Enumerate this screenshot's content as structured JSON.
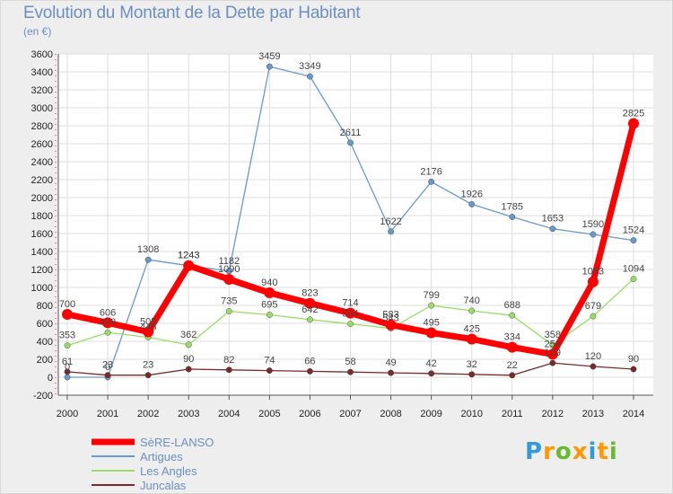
{
  "chart_data": {
    "type": "line",
    "title": "Evolution du Montant de la Dette par Habitant",
    "subtitle": "(en €)",
    "x": [
      "2000",
      "2001",
      "2002",
      "2003",
      "2004",
      "2005",
      "2006",
      "2007",
      "2008",
      "2009",
      "2010",
      "2011",
      "2012",
      "2013",
      "2014"
    ],
    "yticks": [
      -200,
      0,
      200,
      400,
      600,
      800,
      1000,
      1200,
      1400,
      1600,
      1800,
      2000,
      2200,
      2400,
      2600,
      2800,
      3000,
      3200,
      3400,
      3600
    ],
    "ylim": [
      -200,
      3600
    ],
    "series": [
      {
        "name": "SèRE-LANSO",
        "color": "#ff0000",
        "width": 7,
        "values": [
          700,
          606,
          505,
          1243,
          1090,
          940,
          823,
          714,
          583,
          495,
          425,
          334,
          256,
          1063,
          2825
        ],
        "labels": [
          "700",
          "606",
          "505",
          "1243",
          "1090",
          "940",
          "823",
          "714",
          "583",
          "495",
          "425",
          "334",
          "256",
          "1063",
          "2825"
        ]
      },
      {
        "name": "Artigues",
        "color": "#6699cc",
        "width": 1.3,
        "values": [
          0,
          0,
          1308,
          1243,
          1182,
          3459,
          3349,
          2611,
          1622,
          2176,
          1926,
          1785,
          1653,
          1590,
          1524
        ],
        "labels": [
          "0",
          "0",
          "1308",
          "1243",
          "1182",
          "3459",
          "3349",
          "2611",
          "1622",
          "2176",
          "1926",
          "1785",
          "1653",
          "1590",
          "1524"
        ]
      },
      {
        "name": "Les Angles",
        "color": "#99dd66",
        "width": 1.3,
        "values": [
          353,
          498,
          445,
          362,
          735,
          695,
          642,
          594,
          543,
          799,
          740,
          688,
          358,
          679,
          1094
        ],
        "labels": [
          "353",
          "498",
          "445",
          "362",
          "735",
          "695",
          "642",
          "594",
          "543",
          "799",
          "740",
          "688",
          "358",
          "679",
          "1094"
        ]
      },
      {
        "name": "Juncalas",
        "color": "#7a2a2a",
        "width": 1.3,
        "values": [
          61,
          23,
          23,
          90,
          82,
          74,
          66,
          58,
          49,
          42,
          32,
          22,
          159,
          120,
          90
        ],
        "labels": [
          "61",
          "23",
          "23",
          "90",
          "82",
          "74",
          "66",
          "58",
          "49",
          "42",
          "32",
          "22",
          "159",
          "120",
          "90"
        ]
      }
    ]
  },
  "brand": {
    "letters": [
      "P",
      "r",
      "o",
      "x",
      "i",
      "t",
      "i"
    ],
    "colors": [
      "#3399dd",
      "#ff9900",
      "#66bb33",
      "#ff9900",
      "#3399dd",
      "#ff9900",
      "#66bb33"
    ]
  }
}
